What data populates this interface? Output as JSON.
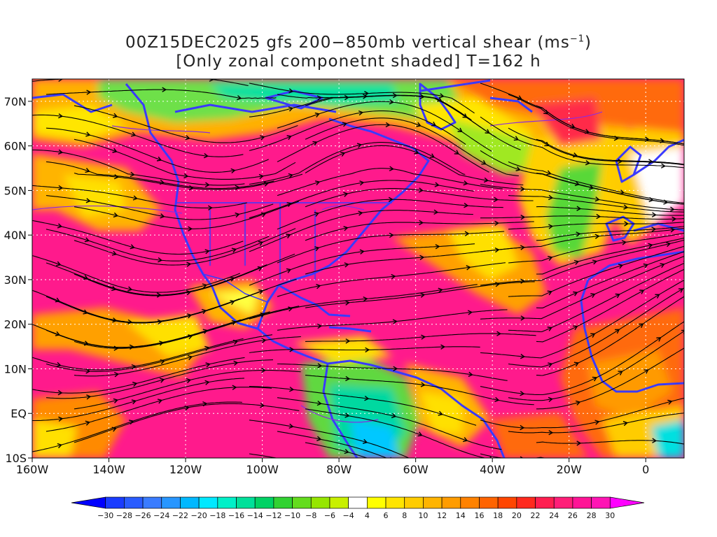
{
  "title": {
    "line1_prefix": "00Z15DEC2025 gfs 200−850mb vertical shear (ms",
    "line1_exp": "−1",
    "line1_suffix": ")",
    "line2": "[Only zonal componetnt shaded] T=162 h"
  },
  "map": {
    "lon_range": [
      -160,
      10
    ],
    "lat_range": [
      -10,
      75
    ],
    "lon_ticks": [
      "160W",
      "140W",
      "120W",
      "100W",
      "80W",
      "60W",
      "40W",
      "20W",
      "0"
    ],
    "lat_ticks": [
      "70N",
      "60N",
      "50N",
      "40N",
      "30N",
      "20N",
      "10N",
      "EQ",
      "10S"
    ],
    "fields": "zonal vertical shear shaded, wind-shear streamlines",
    "colors": {
      "coastline": "#3a3aff",
      "lakes": "#8b2be2",
      "streamlines": "#000000",
      "grid": "#ffffff"
    }
  },
  "colorbar": {
    "labels": [
      "−30",
      "−28",
      "−26",
      "−24",
      "−22",
      "−20",
      "−18",
      "−16",
      "−14",
      "−12",
      "−10",
      "−8",
      "−6",
      "−4",
      "4",
      "6",
      "8",
      "10",
      "12",
      "14",
      "16",
      "18",
      "20",
      "22",
      "24",
      "26",
      "28",
      "30"
    ],
    "colors": [
      "#0000ff",
      "#1a3cff",
      "#2a5cff",
      "#3a7cff",
      "#2896ff",
      "#00b8ff",
      "#00e8ff",
      "#00f0c8",
      "#00e09a",
      "#00d264",
      "#32d232",
      "#64dc1e",
      "#96e600",
      "#c8f000",
      "#ffffff",
      "#ffff00",
      "#ffe400",
      "#ffcc00",
      "#ffb400",
      "#ff9c00",
      "#ff8200",
      "#ff6400",
      "#ff4600",
      "#ff2a1e",
      "#ff1e50",
      "#ff1e78",
      "#ff1496",
      "#ff14b4",
      "#ff00ff"
    ]
  }
}
